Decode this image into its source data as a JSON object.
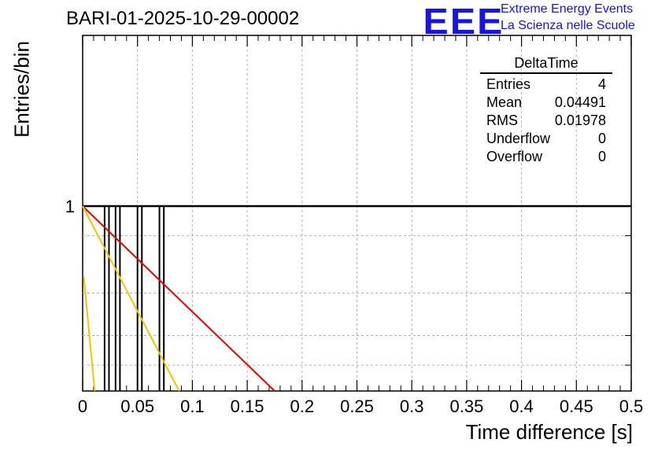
{
  "chart_data": {
    "type": "bar",
    "title": "BARI-01-2025-10-29-00002",
    "xlabel": "Time difference [s]",
    "ylabel": "Entries/bin",
    "xlim": [
      0,
      0.5
    ],
    "x_ticks": [
      "0",
      "0.05",
      "0.1",
      "0.15",
      "0.2",
      "0.25",
      "0.3",
      "0.35",
      "0.4",
      "0.45",
      "0.5"
    ],
    "y_ticks": [
      "1"
    ],
    "grid": true,
    "entries_x": [
      0.02,
      0.024,
      0.03,
      0.034,
      0.05,
      0.054,
      0.07,
      0.074
    ],
    "entries_height": 1,
    "fit_lines": [
      {
        "name": "red fit",
        "color": "#e60000",
        "x": [
          0.0,
          0.175
        ],
        "y": [
          1.0,
          0.0
        ]
      },
      {
        "name": "yellow fit 1",
        "color": "#f5c400",
        "x": [
          0.0,
          0.088
        ],
        "y": [
          1.0,
          0.0
        ]
      },
      {
        "name": "yellow fit 2",
        "color": "#f5c400",
        "x": [
          0.001,
          0.011
        ],
        "y": [
          0.62,
          0.0
        ]
      }
    ]
  },
  "logo": {
    "mark": "EEE",
    "line1": "Extreme Energy Events",
    "line2": "La Scienza nelle Scuole"
  },
  "stats": {
    "title": "DeltaTime",
    "rows": [
      {
        "label": "Entries",
        "value": "4"
      },
      {
        "label": "Mean",
        "value": "0.04491"
      },
      {
        "label": "RMS",
        "value": "0.01978"
      },
      {
        "label": "Underflow",
        "value": "0"
      },
      {
        "label": "Overflow",
        "value": "0"
      }
    ]
  },
  "colors": {
    "logo": "#1515e6",
    "red_fit": "#e60000",
    "yellow_fit": "#f5c400"
  }
}
